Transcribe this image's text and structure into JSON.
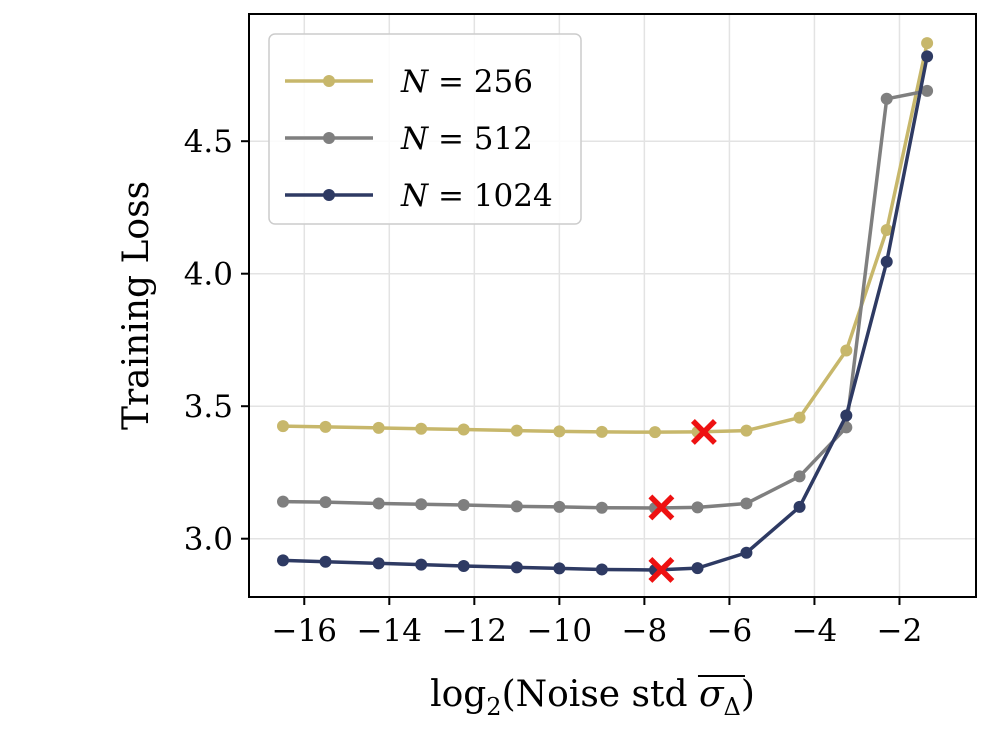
{
  "chart_data": {
    "type": "line",
    "title": "",
    "xlabel": "log2(Noise std σΔ)",
    "xlabel_parts": {
      "func": "log",
      "sub": "2",
      "open": "(",
      "text": "Noise std ",
      "sigma": "σ",
      "sigma_sub": "Δ",
      "close": ")"
    },
    "ylabel": "Training Loss",
    "xlim": [
      -17.3,
      -0.2
    ],
    "ylim": [
      2.78,
      4.98
    ],
    "xticks": [
      -16,
      -14,
      -12,
      -10,
      -8,
      -6,
      -4,
      -2
    ],
    "xtick_labels": [
      "−16",
      "−14",
      "−12",
      "−10",
      "−8",
      "−6",
      "−4",
      "−2"
    ],
    "yticks": [
      3.0,
      3.5,
      4.0,
      4.5
    ],
    "ytick_labels": [
      "3.0",
      "3.5",
      "4.0",
      "4.5"
    ],
    "grid": true,
    "legend_position": "top-left",
    "x": [
      -16.5,
      -15.5,
      -14.25,
      -13.25,
      -12.25,
      -11,
      -10,
      -9,
      -7.75,
      -6.75,
      -5.6,
      -4.35,
      -3.25,
      -2.3,
      -1.35
    ],
    "series": [
      {
        "name": "N = 256",
        "name_parts": {
          "var": "N",
          "eq": " = 256"
        },
        "color": "#c7b76b",
        "values": [
          3.425,
          3.422,
          3.418,
          3.415,
          3.412,
          3.408,
          3.405,
          3.403,
          3.402,
          3.403,
          3.408,
          3.457,
          3.71,
          4.165,
          4.87
        ],
        "optimum": {
          "x": -6.6,
          "y": 3.403
        }
      },
      {
        "name": "N = 512",
        "name_parts": {
          "var": "N",
          "eq": " = 512"
        },
        "color": "#7f7f7f",
        "values": [
          3.14,
          3.138,
          3.133,
          3.13,
          3.127,
          3.122,
          3.12,
          3.117,
          3.116,
          3.118,
          3.133,
          3.235,
          3.42,
          4.66,
          4.69
        ],
        "optimum": {
          "x": -7.6,
          "y": 3.118
        }
      },
      {
        "name": "N = 1024",
        "name_parts": {
          "var": "N",
          "eq": " = 1024"
        },
        "color": "#2e3a63",
        "values": [
          2.918,
          2.913,
          2.907,
          2.902,
          2.897,
          2.892,
          2.888,
          2.884,
          2.882,
          2.889,
          2.947,
          3.12,
          3.465,
          4.045,
          4.82
        ],
        "optimum": {
          "x": -7.6,
          "y": 2.882
        }
      }
    ],
    "marker_color": "#ee1111"
  }
}
